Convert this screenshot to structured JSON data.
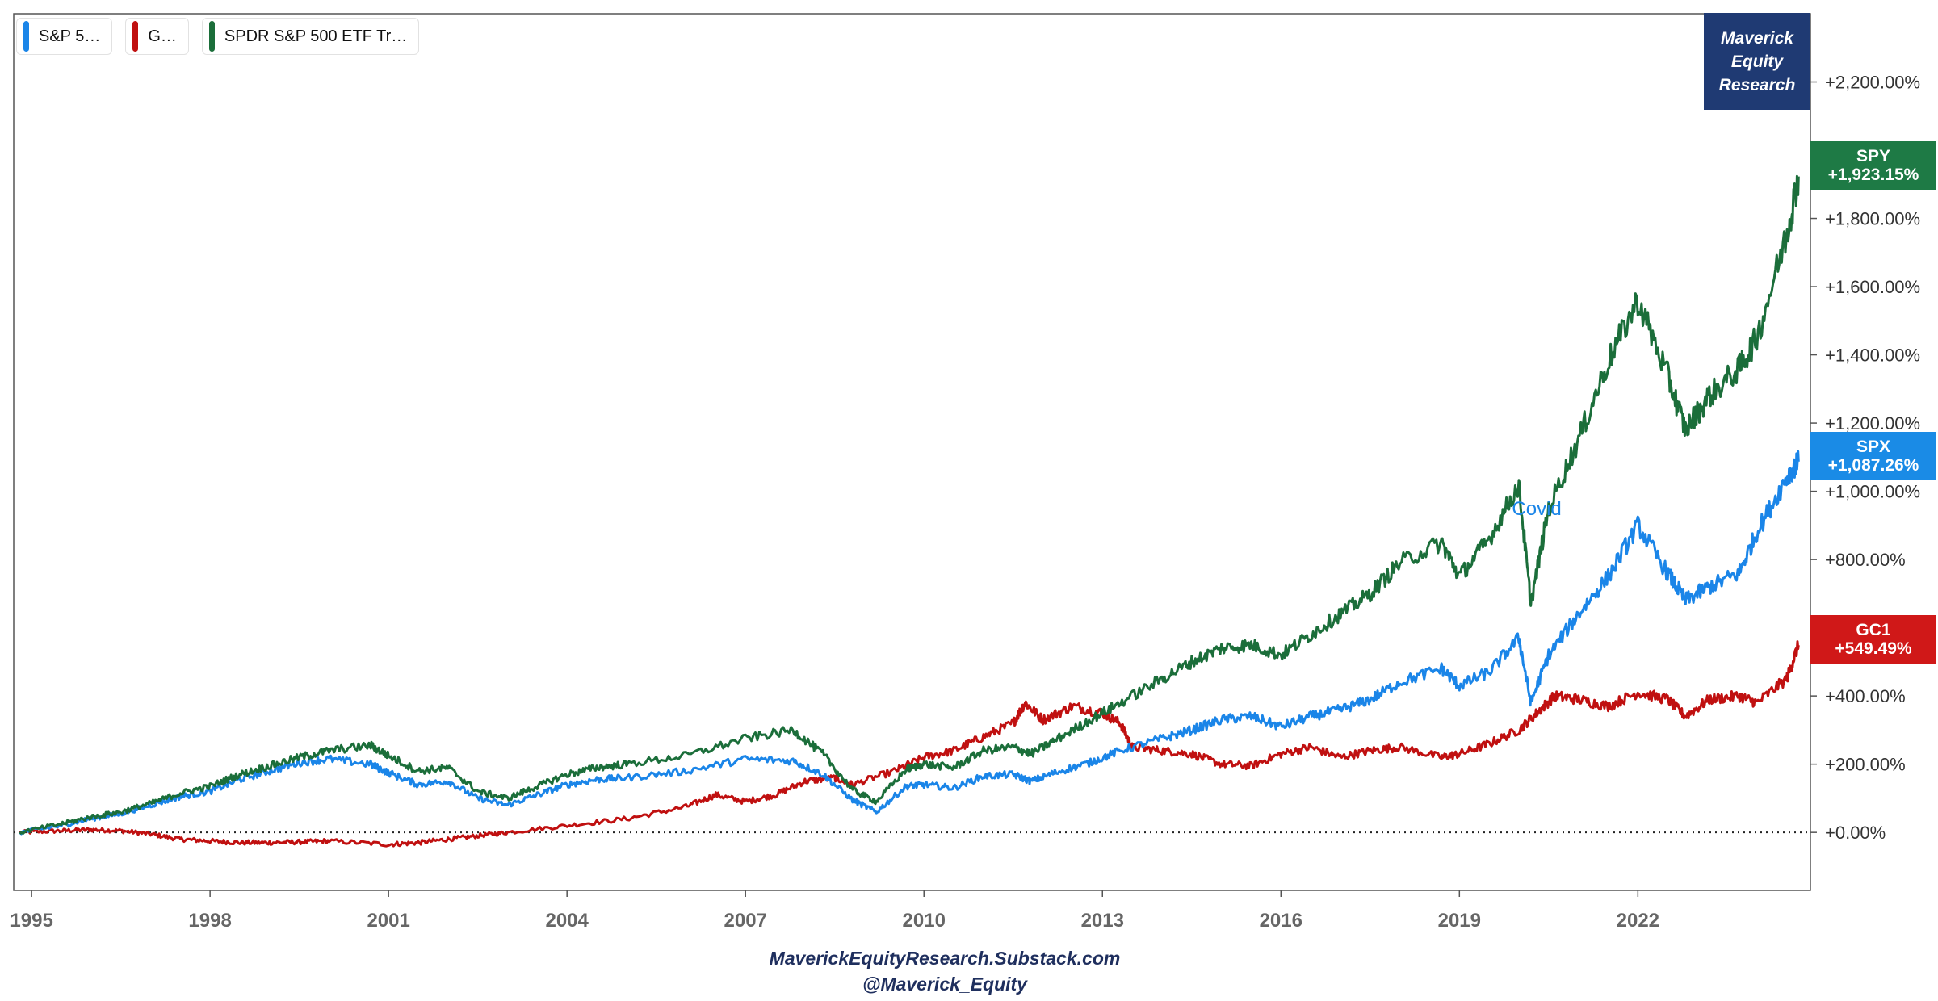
{
  "brand": {
    "line1": "Maverick",
    "line2": "Equity",
    "line3": "Research"
  },
  "footer": {
    "line1": "MaverickEquityResearch.Substack.com",
    "line2": "@Maverick_Equity"
  },
  "legend": [
    {
      "label": "S&P 5…",
      "color": "#1a85e8"
    },
    {
      "label": "G…",
      "color": "#c01010"
    },
    {
      "label": "SPDR S&P 500 ETF Tr…",
      "color": "#1b6e3a"
    }
  ],
  "badges": {
    "spy": {
      "ticker": "SPY",
      "value": "+1,923.15%",
      "color": "#1e7a45"
    },
    "spx": {
      "ticker": "SPX",
      "value": "+1,087.26%",
      "color": "#1a8be6"
    },
    "gc1": {
      "ticker": "GC1",
      "value": "+549.49%",
      "color": "#d01818"
    }
  },
  "chart_data": {
    "type": "line",
    "title": "",
    "xlabel": "",
    "ylabel": "",
    "xlim": [
      1994.7,
      2024.9
    ],
    "ylim": [
      -170,
      2400
    ],
    "x_ticks": [
      1995,
      1998,
      2001,
      2004,
      2007,
      2010,
      2013,
      2016,
      2019,
      2022
    ],
    "x_tick_labels": [
      "1995",
      "1998",
      "2001",
      "2004",
      "2007",
      "2010",
      "2013",
      "2016",
      "2019",
      "2022"
    ],
    "y_ticks": [
      0,
      200,
      400,
      600,
      800,
      1000,
      1200,
      1400,
      1600,
      1800,
      2000,
      2200
    ],
    "y_tick_labels": [
      "+0.00%",
      "+200.00%",
      "+400.00%",
      "+600.00%",
      "+800.00%",
      "+1,000.00%",
      "+1,200.00%",
      "+1,400.00%",
      "+1,600.00%",
      "+1,800.00%",
      "+2,000.00%",
      "+2,200.00%"
    ],
    "baseline": 0,
    "annotations": [
      {
        "text": "Covid",
        "x": 2020.3,
        "y": 930,
        "color": "#1a85e8"
      }
    ],
    "series": [
      {
        "name": "S&P 5…",
        "color": "#1a85e8",
        "x": [
          1994.8,
          1995.5,
          1996.0,
          1996.5,
          1997.0,
          1997.5,
          1998.0,
          1998.5,
          1999.0,
          1999.5,
          2000.0,
          2000.7,
          2001.0,
          2001.5,
          2002.0,
          2002.5,
          2003.0,
          2003.5,
          2004.0,
          2004.5,
          2005.0,
          2006.0,
          2007.0,
          2007.8,
          2008.3,
          2008.8,
          2009.2,
          2009.7,
          2010.0,
          2010.5,
          2011.0,
          2011.5,
          2011.8,
          2012.2,
          2012.8,
          2013.3,
          2014.0,
          2014.5,
          2015.0,
          2015.5,
          2016.0,
          2016.5,
          2017.0,
          2017.5,
          2018.0,
          2018.7,
          2019.0,
          2019.5,
          2020.0,
          2020.2,
          2020.5,
          2021.0,
          2021.5,
          2022.0,
          2022.5,
          2022.8,
          2023.2,
          2023.7,
          2024.0,
          2024.5,
          2024.7
        ],
        "values": [
          0,
          20,
          40,
          55,
          80,
          105,
          120,
          155,
          180,
          205,
          215,
          200,
          175,
          140,
          150,
          100,
          80,
          110,
          140,
          155,
          160,
          180,
          215,
          210,
          170,
          95,
          60,
          135,
          140,
          130,
          165,
          170,
          150,
          175,
          205,
          240,
          275,
          300,
          330,
          340,
          310,
          340,
          360,
          390,
          440,
          480,
          430,
          470,
          570,
          380,
          520,
          640,
          750,
          900,
          760,
          680,
          720,
          760,
          880,
          1040,
          1087
        ]
      },
      {
        "name": "G…",
        "color": "#c01010",
        "x": [
          1994.8,
          1995.5,
          1996.0,
          1996.5,
          1997.0,
          1997.5,
          1998.0,
          1998.5,
          1999.0,
          1999.5,
          2000.0,
          2001.0,
          2001.5,
          2002.0,
          2002.5,
          2003.0,
          2004.0,
          2005.0,
          2006.0,
          2006.5,
          2007.0,
          2007.5,
          2008.0,
          2008.5,
          2008.8,
          2009.5,
          2010.0,
          2010.5,
          2011.0,
          2011.5,
          2011.7,
          2012.0,
          2012.5,
          2013.0,
          2013.3,
          2013.5,
          2014.0,
          2014.5,
          2015.0,
          2015.5,
          2016.0,
          2016.5,
          2017.0,
          2017.5,
          2018.0,
          2018.7,
          2019.0,
          2019.5,
          2020.0,
          2020.3,
          2020.6,
          2021.0,
          2021.5,
          2022.0,
          2022.5,
          2022.8,
          2023.2,
          2023.7,
          2024.0,
          2024.5,
          2024.7
        ],
        "values": [
          0,
          5,
          8,
          5,
          -5,
          -20,
          -25,
          -30,
          -30,
          -28,
          -25,
          -35,
          -30,
          -20,
          -10,
          0,
          20,
          40,
          75,
          110,
          90,
          110,
          150,
          160,
          140,
          180,
          220,
          240,
          280,
          320,
          380,
          330,
          370,
          350,
          320,
          250,
          240,
          230,
          200,
          195,
          230,
          250,
          220,
          240,
          250,
          220,
          230,
          260,
          300,
          350,
          400,
          390,
          370,
          410,
          390,
          340,
          390,
          400,
          380,
          450,
          549
        ]
      },
      {
        "name": "SPDR S&P 500 ETF Tr…",
        "color": "#1b6e3a",
        "x": [
          1994.8,
          1995.5,
          1996.0,
          1996.5,
          1997.0,
          1997.5,
          1998.0,
          1998.5,
          1999.0,
          1999.5,
          2000.0,
          2000.7,
          2001.0,
          2001.5,
          2002.0,
          2002.5,
          2003.0,
          2003.5,
          2004.0,
          2004.5,
          2005.0,
          2006.0,
          2007.0,
          2007.8,
          2008.3,
          2008.8,
          2009.2,
          2009.7,
          2010.0,
          2010.5,
          2011.0,
          2011.5,
          2011.8,
          2012.2,
          2012.8,
          2013.3,
          2014.0,
          2014.5,
          2015.0,
          2015.5,
          2016.0,
          2016.5,
          2017.0,
          2017.5,
          2018.0,
          2018.7,
          2019.0,
          2019.5,
          2020.0,
          2020.2,
          2020.5,
          2021.0,
          2021.5,
          2022.0,
          2022.5,
          2022.8,
          2023.2,
          2023.7,
          2024.0,
          2024.5,
          2024.7
        ],
        "values": [
          0,
          25,
          45,
          60,
          85,
          115,
          135,
          170,
          195,
          220,
          240,
          255,
          225,
          180,
          190,
          120,
          100,
          135,
          170,
          190,
          200,
          225,
          275,
          300,
          230,
          125,
          90,
          185,
          200,
          190,
          240,
          250,
          230,
          270,
          330,
          380,
          450,
          500,
          540,
          550,
          520,
          580,
          640,
          700,
          790,
          850,
          750,
          860,
          1020,
          670,
          950,
          1150,
          1380,
          1560,
          1340,
          1180,
          1280,
          1360,
          1450,
          1750,
          1923
        ]
      }
    ]
  }
}
